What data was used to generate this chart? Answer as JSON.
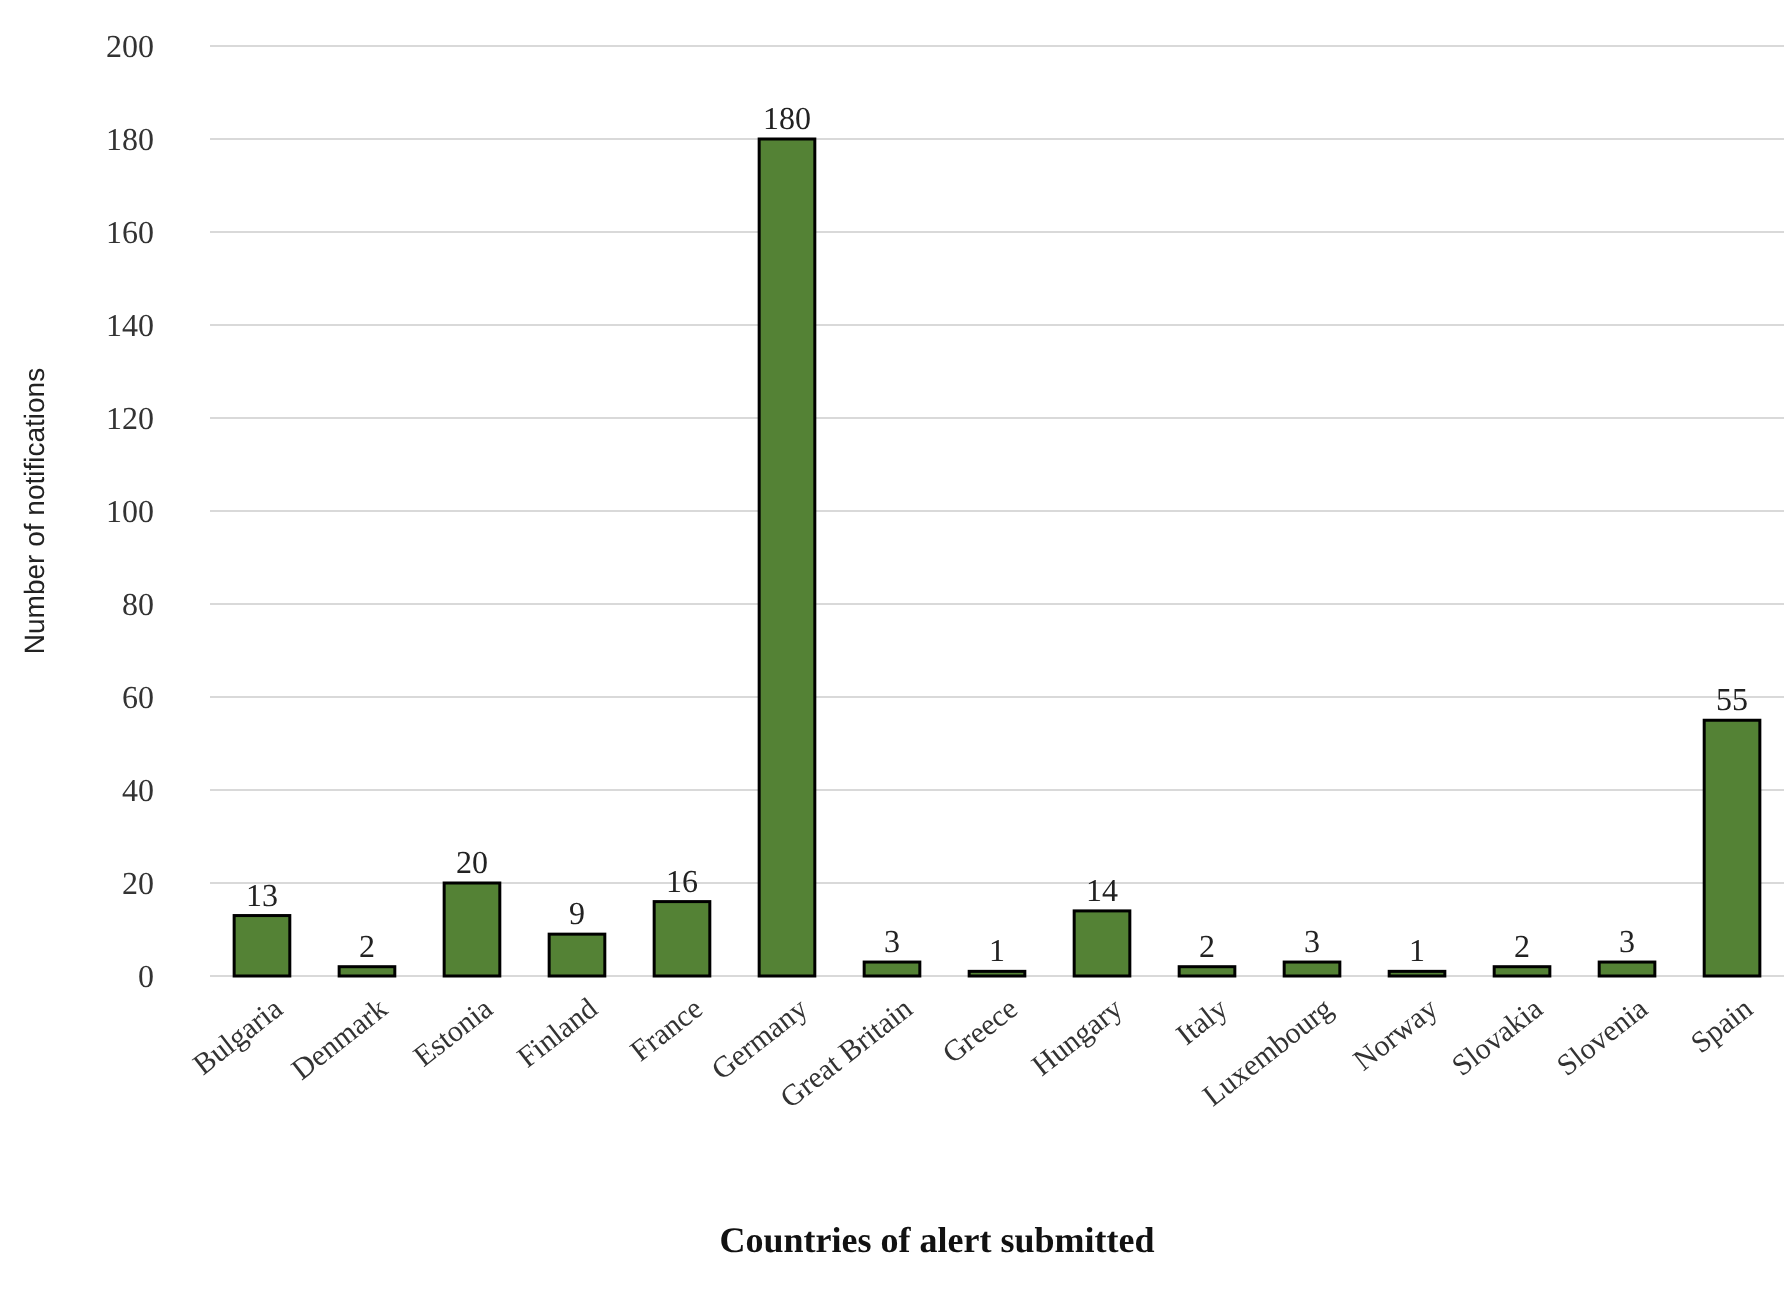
{
  "chart_data": {
    "type": "bar",
    "xlabel": "Countries of alert submitted",
    "ylabel": "Number of notifications",
    "categories": [
      "Bulgaria",
      "Denmark",
      "Estonia",
      "Finland",
      "France",
      "Germany",
      "Great Britain",
      "Greece",
      "Hungary",
      "Italy",
      "Luxembourg",
      "Norway",
      "Slovakia",
      "Slovenia",
      "Spain"
    ],
    "values": [
      13,
      2,
      20,
      9,
      16,
      180,
      3,
      1,
      14,
      2,
      3,
      1,
      2,
      3,
      55
    ],
    "color": "#548235",
    "ylim": [
      0,
      200
    ],
    "yticks": [
      0,
      20,
      40,
      60,
      80,
      100,
      120,
      140,
      160,
      180,
      200
    ],
    "grid": "y",
    "data_labels": true
  }
}
